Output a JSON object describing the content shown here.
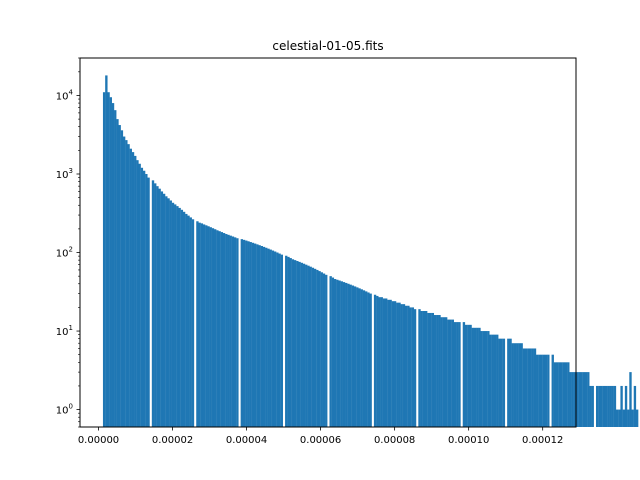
{
  "chart_data": {
    "type": "bar",
    "subtype": "histogram",
    "title": "celestial-01-05.fits",
    "xlabel": "",
    "ylabel": "",
    "y_scale": "log",
    "grid": false,
    "legend": "none",
    "bar_color": "#1f77b4",
    "xlim": [
      -5e-06,
      0.000129
    ],
    "ylim": [
      0.6,
      30000
    ],
    "x_ticks": [
      0.0,
      2e-05,
      4e-05,
      6e-05,
      8e-05,
      0.0001,
      0.00012
    ],
    "x_tick_labels": [
      "0.00000",
      "0.00002",
      "0.00004",
      "0.00006",
      "0.00008",
      "0.00010",
      "0.00012"
    ],
    "y_ticks": [
      1,
      10,
      100,
      1000,
      10000
    ],
    "y_tick_labels": [
      "10^0",
      "10^1",
      "10^2",
      "10^3",
      "10^4"
    ],
    "bin_start": 1.2e-06,
    "bin_width": 6e-07,
    "values": [
      11000,
      18000,
      11000,
      9500,
      8000,
      6500,
      5000,
      4200,
      3600,
      3000,
      2700,
      2400,
      2100,
      1900,
      1700,
      1500,
      1350,
      1200,
      1100,
      1000,
      900,
      0,
      830,
      760,
      700,
      650,
      600,
      560,
      520,
      490,
      460,
      430,
      410,
      390,
      370,
      350,
      330,
      310,
      295,
      280,
      265,
      0,
      250,
      240,
      235,
      228,
      222,
      216,
      210,
      204,
      198,
      192,
      187,
      182,
      177,
      172,
      168,
      164,
      160,
      156,
      152,
      0,
      148,
      145,
      142,
      139,
      136,
      133,
      130,
      127,
      124,
      121,
      118,
      115,
      112,
      109,
      106,
      103,
      100,
      97,
      94,
      0,
      91,
      88,
      85,
      82,
      80,
      78,
      76,
      74,
      72,
      70,
      68,
      66,
      64,
      62,
      60,
      58,
      56,
      54,
      52,
      0,
      50,
      48,
      46,
      45,
      44,
      43,
      42,
      41,
      40,
      39,
      38,
      37,
      36,
      35,
      34,
      33,
      32,
      31,
      30,
      0,
      29,
      28,
      27,
      27,
      26,
      26,
      25,
      25,
      24,
      24,
      23,
      23,
      22,
      22,
      21,
      21,
      20,
      20,
      19,
      0,
      19,
      18,
      18,
      18,
      17,
      17,
      17,
      16,
      16,
      16,
      15,
      15,
      15,
      14,
      14,
      14,
      13,
      13,
      13,
      0,
      13,
      12,
      12,
      12,
      11,
      11,
      11,
      11,
      10,
      10,
      10,
      10,
      9,
      9,
      9,
      9,
      8,
      8,
      8,
      0,
      8,
      8,
      7,
      7,
      7,
      7,
      7,
      6,
      6,
      6,
      6,
      6,
      6,
      5,
      5,
      5,
      5,
      5,
      5,
      0,
      5,
      4,
      4,
      4,
      4,
      4,
      4,
      4,
      3,
      3,
      3,
      3,
      3,
      3,
      3,
      3,
      3,
      2,
      2,
      0,
      2,
      2,
      2,
      2,
      2,
      2,
      2,
      2,
      2,
      1,
      1,
      2,
      1,
      2,
      1,
      3,
      1,
      2,
      1,
      0
    ]
  }
}
